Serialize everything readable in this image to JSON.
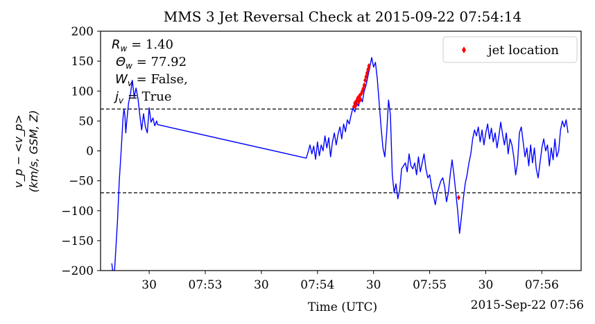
{
  "chart_data": {
    "type": "line",
    "title": "MMS 3 Jet Reversal Check at 2015-09-22 07:54:14",
    "xlabel": "Time (UTC)",
    "ylabel": [
      "v_p − <v_p>",
      "(km/s, GSM, Z)"
    ],
    "x_offset_label": "2015-Sep-22 07:56",
    "xlim": [
      "07:52:04",
      "07:56:21"
    ],
    "ylim": [
      -200,
      200
    ],
    "x_ticks": [
      {
        "t": "07:52:30",
        "label": "30"
      },
      {
        "t": "07:53:00",
        "label": "07:53"
      },
      {
        "t": "07:53:30",
        "label": "30"
      },
      {
        "t": "07:54:00",
        "label": "07:54"
      },
      {
        "t": "07:54:30",
        "label": "30"
      },
      {
        "t": "07:55:00",
        "label": "07:55"
      },
      {
        "t": "07:55:30",
        "label": "30"
      },
      {
        "t": "07:56:00",
        "label": "07:56"
      }
    ],
    "y_ticks": [
      {
        "v": 200,
        "label": "200"
      },
      {
        "v": 150,
        "label": "150"
      },
      {
        "v": 100,
        "label": "100"
      },
      {
        "v": 50,
        "label": "50"
      },
      {
        "v": 0,
        "label": "0"
      },
      {
        "v": -50,
        "label": "−50"
      },
      {
        "v": -100,
        "label": "−100"
      },
      {
        "v": -150,
        "label": "−150"
      },
      {
        "v": -200,
        "label": "−200"
      }
    ],
    "threshold_lines": [
      70,
      -70
    ],
    "annotation": [
      {
        "math": "R",
        "sub": "w",
        "rest": " = 1.40"
      },
      {
        "math": "Θ",
        "sub": "w",
        "rest": " = 77.92"
      },
      {
        "math": "W",
        "sub": "v",
        "rest": " = False,"
      },
      {
        "math": "j",
        "sub": "v",
        "rest": " = True"
      }
    ],
    "legend": {
      "position": "top-right",
      "entries": [
        {
          "name": "jet location",
          "color": "#ff0000",
          "marker": "diamond"
        }
      ]
    },
    "colors": {
      "series": "#0000ff",
      "jet": "#ff0000",
      "threshold": "#000000"
    },
    "series": [
      {
        "style": "line",
        "points": [
          [
            "07:52:10.0",
            -188
          ],
          [
            "07:52:10.5",
            -200
          ],
          [
            "07:52:11.5",
            -200
          ],
          [
            "07:52:13.0",
            -120
          ],
          [
            "07:52:14.0",
            -50
          ],
          [
            "07:52:15.0",
            0
          ],
          [
            "07:52:16.0",
            55
          ],
          [
            "07:52:16.5",
            70
          ],
          [
            "07:52:17.0",
            60
          ],
          [
            "07:52:17.5",
            30
          ],
          [
            "07:52:18.0",
            50
          ],
          [
            "07:52:19.0",
            80
          ],
          [
            "07:52:20.0",
            95
          ],
          [
            "07:52:21.0",
            118
          ],
          [
            "07:52:22.0",
            90
          ],
          [
            "07:52:23.0",
            105
          ],
          [
            "07:52:24.0",
            88
          ],
          [
            "07:52:25.0",
            60
          ],
          [
            "07:52:26.0",
            35
          ],
          [
            "07:52:27.0",
            62
          ],
          [
            "07:52:28.0",
            40
          ],
          [
            "07:52:29.0",
            30
          ],
          [
            "07:52:30.0",
            72
          ],
          [
            "07:52:31.0",
            48
          ],
          [
            "07:52:32.0",
            55
          ],
          [
            "07:52:33.0",
            42
          ],
          [
            "07:52:34.0",
            50
          ],
          [
            "07:52:34.5",
            44
          ],
          [
            "07:53:54.0",
            -12
          ],
          [
            "07:53:55.0",
            -2
          ],
          [
            "07:53:56.0",
            10
          ],
          [
            "07:53:57.0",
            -5
          ],
          [
            "07:53:58.0",
            8
          ],
          [
            "07:53:59.0",
            -14
          ],
          [
            "07:54:00.0",
            15
          ],
          [
            "07:54:01.0",
            -8
          ],
          [
            "07:54:02.0",
            10
          ],
          [
            "07:54:03.0",
            0
          ],
          [
            "07:54:04.0",
            25
          ],
          [
            "07:54:05.0",
            5
          ],
          [
            "07:54:06.0",
            22
          ],
          [
            "07:54:07.0",
            -10
          ],
          [
            "07:54:08.0",
            15
          ],
          [
            "07:54:09.0",
            30
          ],
          [
            "07:54:10.0",
            10
          ],
          [
            "07:54:11.0",
            28
          ],
          [
            "07:54:12.0",
            40
          ],
          [
            "07:54:13.0",
            20
          ],
          [
            "07:54:14.0",
            45
          ],
          [
            "07:54:15.0",
            32
          ],
          [
            "07:54:16.0",
            52
          ],
          [
            "07:54:17.0",
            45
          ],
          [
            "07:54:18.0",
            60
          ],
          [
            "07:54:19.0",
            72
          ],
          [
            "07:54:20.0",
            65
          ],
          [
            "07:54:21.0",
            80
          ],
          [
            "07:54:22.0",
            75
          ],
          [
            "07:54:23.0",
            90
          ],
          [
            "07:54:24.0",
            82
          ],
          [
            "07:54:25.0",
            100
          ],
          [
            "07:54:26.0",
            110
          ],
          [
            "07:54:27.0",
            125
          ],
          [
            "07:54:28.0",
            140
          ],
          [
            "07:54:29.0",
            156
          ],
          [
            "07:54:30.0",
            140
          ],
          [
            "07:54:31.0",
            148
          ],
          [
            "07:54:32.0",
            120
          ],
          [
            "07:54:33.0",
            80
          ],
          [
            "07:54:34.0",
            40
          ],
          [
            "07:54:35.0",
            5
          ],
          [
            "07:54:36.0",
            -10
          ],
          [
            "07:54:37.0",
            30
          ],
          [
            "07:54:38.0",
            85
          ],
          [
            "07:54:39.0",
            60
          ],
          [
            "07:54:40.0",
            -40
          ],
          [
            "07:54:41.0",
            -70
          ],
          [
            "07:54:42.0",
            -55
          ],
          [
            "07:54:43.0",
            -80
          ],
          [
            "07:54:44.0",
            -65
          ],
          [
            "07:54:45.0",
            -30
          ],
          [
            "07:54:46.0",
            -25
          ],
          [
            "07:54:47.0",
            -20
          ],
          [
            "07:54:48.0",
            -35
          ],
          [
            "07:54:49.0",
            -5
          ],
          [
            "07:54:50.0",
            -25
          ],
          [
            "07:54:51.0",
            -30
          ],
          [
            "07:54:52.0",
            -20
          ],
          [
            "07:54:53.0",
            -40
          ],
          [
            "07:54:54.0",
            -10
          ],
          [
            "07:54:55.0",
            -35
          ],
          [
            "07:54:56.0",
            -20
          ],
          [
            "07:54:57.0",
            -5
          ],
          [
            "07:54:58.0",
            -30
          ],
          [
            "07:54:59.0",
            -45
          ],
          [
            "07:55:00.0",
            -40
          ],
          [
            "07:55:01.0",
            -60
          ],
          [
            "07:55:02.0",
            -75
          ],
          [
            "07:55:03.0",
            -90
          ],
          [
            "07:55:04.0",
            -70
          ],
          [
            "07:55:05.0",
            -60
          ],
          [
            "07:55:06.0",
            -50
          ],
          [
            "07:55:07.0",
            -45
          ],
          [
            "07:55:08.0",
            -60
          ],
          [
            "07:55:09.0",
            -85
          ],
          [
            "07:55:10.0",
            -70
          ],
          [
            "07:55:11.0",
            -40
          ],
          [
            "07:55:12.0",
            -15
          ],
          [
            "07:55:13.0",
            -40
          ],
          [
            "07:55:14.0",
            -70
          ],
          [
            "07:55:15.0",
            -100
          ],
          [
            "07:55:16.0",
            -138
          ],
          [
            "07:55:17.0",
            -110
          ],
          [
            "07:55:18.0",
            -80
          ],
          [
            "07:55:19.0",
            -55
          ],
          [
            "07:55:20.0",
            -40
          ],
          [
            "07:55:21.0",
            -20
          ],
          [
            "07:55:22.0",
            -5
          ],
          [
            "07:55:23.0",
            20
          ],
          [
            "07:55:24.0",
            35
          ],
          [
            "07:55:25.0",
            25
          ],
          [
            "07:55:26.0",
            40
          ],
          [
            "07:55:27.0",
            15
          ],
          [
            "07:55:28.0",
            35
          ],
          [
            "07:55:29.0",
            10
          ],
          [
            "07:55:30.0",
            30
          ],
          [
            "07:55:31.0",
            45
          ],
          [
            "07:55:32.0",
            20
          ],
          [
            "07:55:33.0",
            38
          ],
          [
            "07:55:34.0",
            15
          ],
          [
            "07:55:35.0",
            30
          ],
          [
            "07:55:36.0",
            5
          ],
          [
            "07:55:37.0",
            25
          ],
          [
            "07:55:38.0",
            48
          ],
          [
            "07:55:39.0",
            28
          ],
          [
            "07:55:40.0",
            10
          ],
          [
            "07:55:41.0",
            30
          ],
          [
            "07:55:42.0",
            -5
          ],
          [
            "07:55:43.0",
            20
          ],
          [
            "07:55:44.0",
            10
          ],
          [
            "07:55:45.0",
            -10
          ],
          [
            "07:55:46.0",
            -40
          ],
          [
            "07:55:47.0",
            -20
          ],
          [
            "07:55:48.0",
            30
          ],
          [
            "07:55:49.0",
            40
          ],
          [
            "07:55:50.0",
            15
          ],
          [
            "07:55:51.0",
            -10
          ],
          [
            "07:55:52.0",
            5
          ],
          [
            "07:55:53.0",
            -25
          ],
          [
            "07:55:54.0",
            10
          ],
          [
            "07:55:55.0",
            -20
          ],
          [
            "07:55:56.0",
            5
          ],
          [
            "07:55:57.0",
            -30
          ],
          [
            "07:55:58.0",
            -45
          ],
          [
            "07:55:59.0",
            -20
          ],
          [
            "07:56:00.0",
            5
          ],
          [
            "07:56:01.0",
            20
          ],
          [
            "07:56:02.0",
            0
          ],
          [
            "07:56:03.0",
            10
          ],
          [
            "07:56:04.0",
            -25
          ],
          [
            "07:56:05.0",
            5
          ],
          [
            "07:56:06.0",
            -15
          ],
          [
            "07:56:07.0",
            20
          ],
          [
            "07:56:08.0",
            -10
          ],
          [
            "07:56:09.0",
            0
          ],
          [
            "07:56:10.0",
            35
          ],
          [
            "07:56:11.0",
            50
          ],
          [
            "07:56:12.0",
            40
          ],
          [
            "07:56:13.0",
            52
          ],
          [
            "07:56:14.0",
            30
          ]
        ]
      },
      {
        "name": "jet location",
        "style": "markers",
        "points": [
          [
            "07:54:19.5",
            74
          ],
          [
            "07:54:20.0",
            80
          ],
          [
            "07:54:20.5",
            76
          ],
          [
            "07:54:21.0",
            84
          ],
          [
            "07:54:21.5",
            88
          ],
          [
            "07:54:22.0",
            82
          ],
          [
            "07:54:22.5",
            92
          ],
          [
            "07:54:23.0",
            86
          ],
          [
            "07:54:23.5",
            96
          ],
          [
            "07:54:24.0",
            100
          ],
          [
            "07:54:24.5",
            104
          ],
          [
            "07:54:25.0",
            110
          ],
          [
            "07:54:25.5",
            118
          ],
          [
            "07:54:26.0",
            124
          ],
          [
            "07:54:26.5",
            130
          ],
          [
            "07:54:27.0",
            136
          ],
          [
            "07:54:27.5",
            142
          ],
          [
            "07:55:15.5",
            -78
          ]
        ]
      }
    ]
  }
}
